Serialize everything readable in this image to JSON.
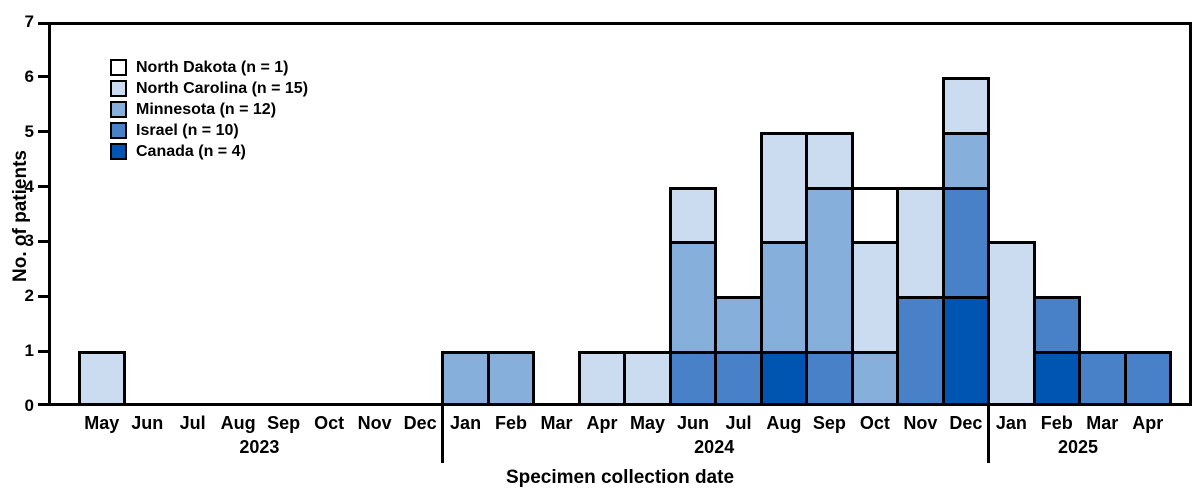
{
  "figure": {
    "background": "#ffffff",
    "frame_color": "#000000",
    "y_axis": {
      "label": "No. of patients",
      "ticks": [
        "0",
        "1",
        "2",
        "3",
        "4",
        "5",
        "6",
        "7"
      ],
      "min": 0,
      "max": 7
    },
    "x_axis": {
      "title": "Specimen collection date"
    }
  },
  "legend": {
    "items": [
      {
        "label": "North Dakota (n = 1)",
        "color": "#ffffff"
      },
      {
        "label": "North Carolina (n = 15)",
        "color": "#ccdcf0"
      },
      {
        "label": "Minnesota (n = 12)",
        "color": "#87afdb"
      },
      {
        "label": "Israel (n = 10)",
        "color": "#4981c8"
      },
      {
        "label": "Canada (n = 4)",
        "color": "#0055b3"
      }
    ]
  },
  "chart_data": {
    "type": "bar",
    "stacked": true,
    "title": "",
    "xlabel": "Specimen collection date",
    "ylabel": "No. of patients",
    "ylim": [
      0,
      7
    ],
    "grid": false,
    "legend_position": "upper-left-inside",
    "categories": [
      "May",
      "Jun",
      "Jul",
      "Aug",
      "Sep",
      "Oct",
      "Nov",
      "Dec",
      "Jan",
      "Feb",
      "Mar",
      "Apr",
      "May",
      "Jun",
      "Jul",
      "Aug",
      "Sep",
      "Oct",
      "Nov",
      "Dec",
      "Jan",
      "Feb",
      "Mar",
      "Apr"
    ],
    "year_groups": [
      {
        "label": "2023",
        "start": 0,
        "count": 8
      },
      {
        "label": "2024",
        "start": 8,
        "count": 12
      },
      {
        "label": "2025",
        "start": 20,
        "count": 4
      }
    ],
    "stack_order_bottom_to_top": [
      "Canada",
      "Israel",
      "Minnesota",
      "North Carolina",
      "North Dakota"
    ],
    "series": [
      {
        "name": "North Dakota",
        "legend_label": "North Dakota (n = 1)",
        "n": 1,
        "color": "#ffffff",
        "values": [
          0,
          0,
          0,
          0,
          0,
          0,
          0,
          0,
          0,
          0,
          0,
          0,
          0,
          0,
          0,
          0,
          0,
          1,
          0,
          0,
          0,
          0,
          0,
          0
        ]
      },
      {
        "name": "North Carolina",
        "legend_label": "North Carolina (n = 15)",
        "n": 15,
        "color": "#ccdcf0",
        "values": [
          1,
          0,
          0,
          0,
          0,
          0,
          0,
          0,
          0,
          0,
          0,
          1,
          1,
          1,
          0,
          2,
          1,
          2,
          2,
          1,
          3,
          0,
          0,
          0
        ]
      },
      {
        "name": "Minnesota",
        "legend_label": "Minnesota (n = 12)",
        "n": 12,
        "color": "#87afdb",
        "values": [
          0,
          0,
          0,
          0,
          0,
          0,
          0,
          0,
          1,
          1,
          0,
          0,
          0,
          2,
          1,
          2,
          3,
          1,
          0,
          1,
          0,
          0,
          0,
          0
        ]
      },
      {
        "name": "Israel",
        "legend_label": "Israel (n = 10)",
        "n": 10,
        "color": "#4981c8",
        "values": [
          0,
          0,
          0,
          0,
          0,
          0,
          0,
          0,
          0,
          0,
          0,
          0,
          0,
          1,
          1,
          0,
          1,
          0,
          2,
          2,
          0,
          1,
          1,
          1
        ]
      },
      {
        "name": "Canada",
        "legend_label": "Canada (n = 4)",
        "n": 4,
        "color": "#0055b3",
        "values": [
          0,
          0,
          0,
          0,
          0,
          0,
          0,
          0,
          0,
          0,
          0,
          0,
          0,
          0,
          0,
          1,
          0,
          0,
          0,
          2,
          0,
          1,
          0,
          0
        ]
      }
    ]
  }
}
